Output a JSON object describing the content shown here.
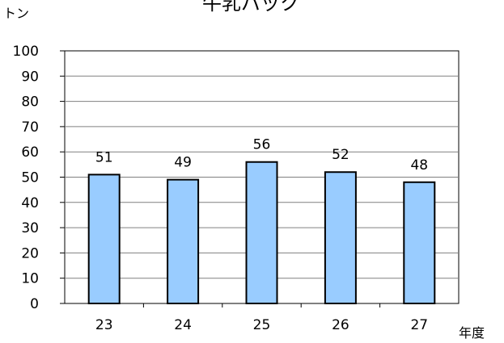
{
  "chart_data": {
    "type": "bar",
    "title": "牛乳パック",
    "ylabel": "トン",
    "xlabel": "年度",
    "categories": [
      "23",
      "24",
      "25",
      "26",
      "27"
    ],
    "values": [
      51,
      49,
      56,
      52,
      48
    ],
    "ylim": [
      0,
      100
    ],
    "yticks": [
      0,
      10,
      20,
      30,
      40,
      50,
      60,
      70,
      80,
      90,
      100
    ],
    "grid": true,
    "bar_color": "#99ccff",
    "bar_stroke": "#000000",
    "gridline_color": "#808080"
  }
}
